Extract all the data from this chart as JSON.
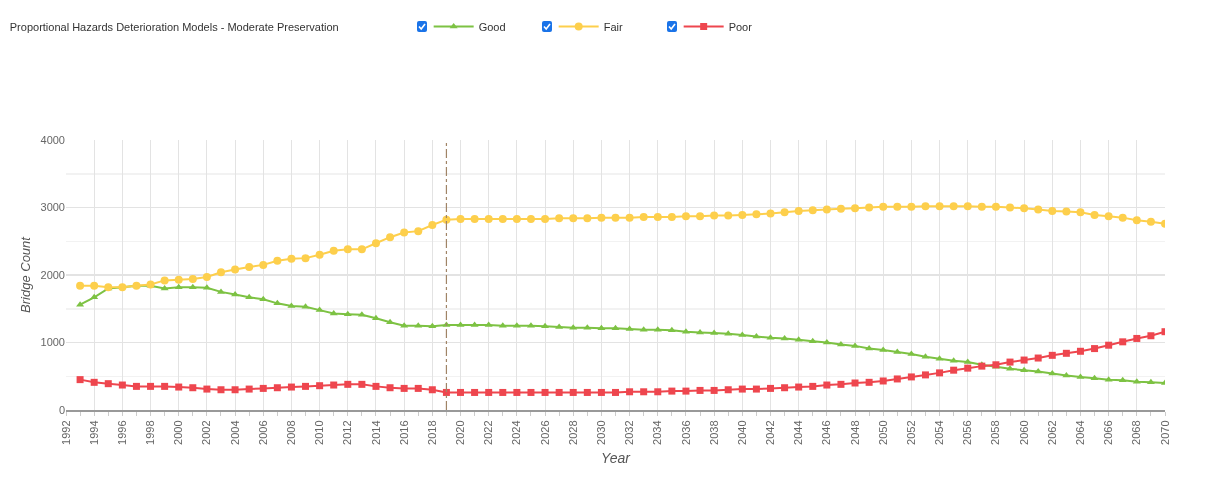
{
  "chart_data": {
    "type": "line",
    "title": "Proportional Hazards Deterioration Models - Moderate Preservation",
    "xlabel": "Year",
    "ylabel": "Bridge Count",
    "x": [
      1993,
      1994,
      1995,
      1996,
      1997,
      1998,
      1999,
      2000,
      2001,
      2002,
      2003,
      2004,
      2005,
      2006,
      2007,
      2008,
      2009,
      2010,
      2011,
      2012,
      2013,
      2014,
      2015,
      2016,
      2017,
      2018,
      2019,
      2020,
      2021,
      2022,
      2023,
      2024,
      2025,
      2026,
      2027,
      2028,
      2029,
      2030,
      2031,
      2032,
      2033,
      2034,
      2035,
      2036,
      2037,
      2038,
      2039,
      2040,
      2041,
      2042,
      2043,
      2044,
      2045,
      2046,
      2047,
      2048,
      2049,
      2050,
      2051,
      2052,
      2053,
      2054,
      2055,
      2056,
      2057,
      2058,
      2059,
      2060,
      2061,
      2062,
      2063,
      2064,
      2065,
      2066,
      2067,
      2068,
      2069,
      2070
    ],
    "series": [
      {
        "name": "Good",
        "color": "#7dc243",
        "marker": "triangle",
        "values": [
          1560,
          1670,
          1800,
          1820,
          1840,
          1840,
          1800,
          1820,
          1820,
          1810,
          1750,
          1710,
          1670,
          1640,
          1580,
          1540,
          1530,
          1480,
          1430,
          1420,
          1410,
          1360,
          1300,
          1250,
          1250,
          1240,
          1260,
          1260,
          1260,
          1260,
          1250,
          1250,
          1250,
          1240,
          1230,
          1220,
          1220,
          1210,
          1210,
          1200,
          1190,
          1190,
          1180,
          1160,
          1150,
          1140,
          1130,
          1110,
          1090,
          1070,
          1060,
          1040,
          1020,
          1000,
          970,
          950,
          910,
          890,
          860,
          830,
          790,
          760,
          730,
          710,
          670,
          640,
          610,
          590,
          570,
          540,
          510,
          490,
          470,
          450,
          440,
          420,
          410,
          400
        ]
      },
      {
        "name": "Fair",
        "color": "#fdcf4c",
        "marker": "circle",
        "values": [
          1840,
          1840,
          1820,
          1820,
          1840,
          1860,
          1920,
          1930,
          1940,
          1970,
          2040,
          2080,
          2120,
          2150,
          2210,
          2240,
          2250,
          2300,
          2360,
          2380,
          2380,
          2470,
          2560,
          2630,
          2650,
          2740,
          2820,
          2830,
          2830,
          2830,
          2830,
          2830,
          2830,
          2830,
          2840,
          2840,
          2840,
          2850,
          2850,
          2850,
          2860,
          2860,
          2860,
          2870,
          2870,
          2880,
          2880,
          2890,
          2900,
          2910,
          2930,
          2950,
          2960,
          2970,
          2980,
          2990,
          3000,
          3010,
          3010,
          3010,
          3020,
          3020,
          3020,
          3020,
          3010,
          3010,
          3000,
          2990,
          2970,
          2950,
          2940,
          2930,
          2890,
          2870,
          2850,
          2810,
          2790,
          2760
        ]
      },
      {
        "name": "Poor",
        "color": "#ee464e",
        "marker": "square",
        "values": [
          450,
          410,
          390,
          370,
          350,
          350,
          350,
          340,
          330,
          310,
          300,
          300,
          310,
          320,
          330,
          340,
          350,
          360,
          370,
          380,
          380,
          350,
          330,
          320,
          320,
          300,
          260,
          260,
          260,
          260,
          260,
          260,
          260,
          260,
          260,
          260,
          260,
          260,
          260,
          270,
          270,
          270,
          280,
          280,
          290,
          290,
          300,
          310,
          310,
          320,
          330,
          340,
          350,
          370,
          380,
          400,
          410,
          430,
          460,
          490,
          520,
          550,
          590,
          620,
          650,
          670,
          710,
          740,
          770,
          810,
          840,
          870,
          910,
          960,
          1010,
          1060,
          1100,
          1160
        ]
      }
    ],
    "xlim": [
      1992,
      2070
    ],
    "xticks": [
      1992,
      1994,
      1996,
      1998,
      2000,
      2002,
      2004,
      2006,
      2008,
      2010,
      2012,
      2014,
      2016,
      2018,
      2020,
      2022,
      2024,
      2026,
      2028,
      2030,
      2032,
      2034,
      2036,
      2038,
      2040,
      2042,
      2044,
      2046,
      2048,
      2050,
      2052,
      2054,
      2056,
      2058,
      2060,
      2062,
      2064,
      2066,
      2068,
      2070
    ],
    "ylim": [
      0,
      4000
    ],
    "yticks": [
      0,
      1000,
      2000,
      3000,
      4000
    ],
    "ref_lines": [
      {
        "axis": "x",
        "value": 2019,
        "color": "#a08466",
        "line_style": "dashdot"
      }
    ],
    "grid": true,
    "legend": "top",
    "line_style": "solid"
  }
}
